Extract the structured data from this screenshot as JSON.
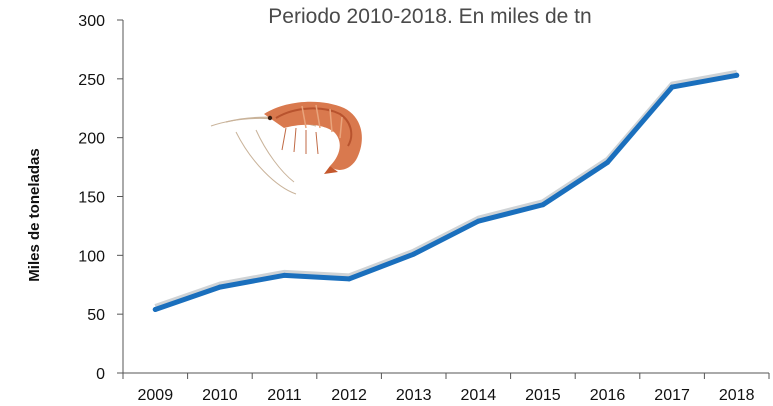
{
  "chart_data": {
    "type": "line",
    "title": "Periodo 2010-2018. En miles de tn",
    "xlabel": "",
    "ylabel": "Miles de toneladas",
    "x": [
      "2009",
      "2010",
      "2011",
      "2012",
      "2013",
      "2014",
      "2015",
      "2016",
      "2017",
      "2018"
    ],
    "series": [
      {
        "values": [
          54,
          73,
          83,
          80,
          101,
          129,
          143,
          179,
          243,
          253
        ],
        "color": "#1a6fbd"
      }
    ],
    "ylim": [
      0,
      300
    ],
    "yticks": [
      0,
      50,
      100,
      150,
      200,
      250,
      300
    ],
    "grid": false,
    "legend": "none"
  },
  "illustration": "shrimp-icon"
}
